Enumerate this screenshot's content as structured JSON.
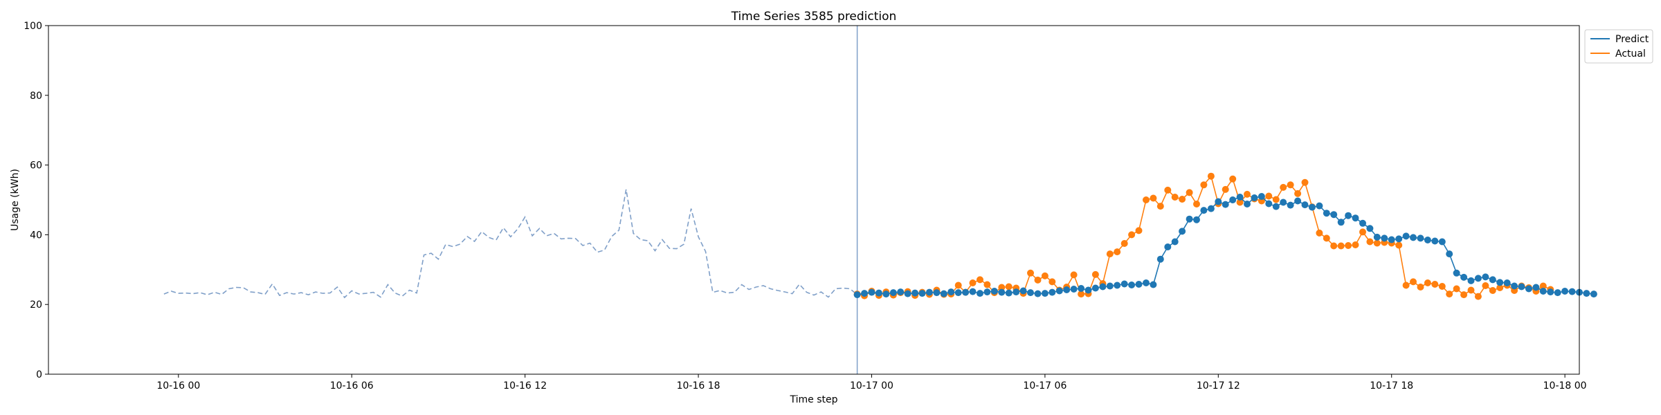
{
  "chart_data": {
    "type": "line",
    "title": "Time Series 3585 prediction",
    "xlabel": "Time step",
    "ylabel": "Usage (kWh)",
    "ylim": [
      0,
      100
    ],
    "xlim_hours": [
      -4.5,
      48.5
    ],
    "yticks": [
      0,
      20,
      40,
      60,
      80,
      100
    ],
    "xticks": [
      {
        "hours": 0,
        "label": "10-16 00"
      },
      {
        "hours": 6,
        "label": "10-16 06"
      },
      {
        "hours": 12,
        "label": "10-16 12"
      },
      {
        "hours": 18,
        "label": "10-16 18"
      },
      {
        "hours": 24,
        "label": "10-17 00"
      },
      {
        "hours": 30,
        "label": "10-17 06"
      },
      {
        "hours": 36,
        "label": "10-17 12"
      },
      {
        "hours": 42,
        "label": "10-17 18"
      },
      {
        "hours": 48,
        "label": "10-18 00"
      }
    ],
    "x_unit": "hours since 10-16 00:00, 15-minute steps",
    "forecast_start_hours": 23.5,
    "legend": {
      "position": "upper-right-outside",
      "entries": [
        "Predict",
        "Actual"
      ]
    },
    "series": [
      {
        "name": "History",
        "style": "dashed",
        "color": "#7f9fc8",
        "x_start": -0.5,
        "step": 0.25,
        "values": [
          23.0,
          23.8,
          23.2,
          23.3,
          23.1,
          23.4,
          22.8,
          23.5,
          22.9,
          24.5,
          24.9,
          24.8,
          23.6,
          23.4,
          22.9,
          25.9,
          22.6,
          23.4,
          23.0,
          23.4,
          22.8,
          23.6,
          23.2,
          23.3,
          25.0,
          22.0,
          23.9,
          23.0,
          23.2,
          23.5,
          22.1,
          25.7,
          23.3,
          22.4,
          24.1,
          23.3,
          34.2,
          34.7,
          33.0,
          37.2,
          36.6,
          37.3,
          39.5,
          38.1,
          40.9,
          39.2,
          38.5,
          42.0,
          39.4,
          41.7,
          45.1,
          39.7,
          41.8,
          39.7,
          40.4,
          38.8,
          39.0,
          38.9,
          36.9,
          37.6,
          35.0,
          35.6,
          39.5,
          41.3,
          53.0,
          40.4,
          38.6,
          38.3,
          35.4,
          38.6,
          36.1,
          36.0,
          37.3,
          47.5,
          39.4,
          35.2,
          23.5,
          24.0,
          23.3,
          23.5,
          25.7,
          24.3,
          25.0,
          25.4,
          24.5,
          24.0,
          23.6,
          23.1,
          25.8,
          23.5,
          22.7,
          23.6,
          22.1,
          24.5,
          24.7,
          24.5,
          22.8,
          23.4
        ]
      },
      {
        "name": "Predict",
        "style": "solid-markers",
        "color": "#1f77b4",
        "x_start": 23.5,
        "step": 0.25,
        "values": [
          22.8,
          23.2,
          23.5,
          23.3,
          23.0,
          23.4,
          23.6,
          23.1,
          23.3,
          23.2,
          23.5,
          23.4,
          23.1,
          23.6,
          23.4,
          23.5,
          23.7,
          23.2,
          23.6,
          23.8,
          23.5,
          23.3,
          23.6,
          23.9,
          23.4,
          23.1,
          23.2,
          23.5,
          23.9,
          24.2,
          24.4,
          24.6,
          24.1,
          24.7,
          25.1,
          25.3,
          25.5,
          25.9,
          25.6,
          25.8,
          26.2,
          25.7,
          33.0,
          36.5,
          38.0,
          41.0,
          44.5,
          44.3,
          47.0,
          47.5,
          49.5,
          48.7,
          50.0,
          50.8,
          48.8,
          50.6,
          51.0,
          48.9,
          48.1,
          49.3,
          48.5,
          49.7,
          48.6,
          47.9,
          48.3,
          46.2,
          45.8,
          43.6,
          45.5,
          44.8,
          43.3,
          41.8,
          39.3,
          39.0,
          38.6,
          38.8,
          39.6,
          39.2,
          39.0,
          38.5,
          38.2,
          38.0,
          34.5,
          29.0,
          27.8,
          26.8,
          27.5,
          27.9,
          27.1,
          26.3,
          26.2,
          25.3,
          25.1,
          24.5,
          24.9,
          23.8,
          23.6,
          23.4,
          23.8,
          23.7,
          23.5,
          23.2,
          23.0
        ]
      },
      {
        "name": "Actual",
        "style": "solid-markers",
        "color": "#ff7f0e",
        "x_start": 23.5,
        "step": 0.25,
        "values": [
          23.0,
          22.5,
          23.8,
          22.6,
          23.6,
          22.7,
          23.4,
          23.7,
          22.6,
          23.5,
          22.9,
          24.1,
          22.9,
          23.0,
          25.5,
          23.5,
          26.2,
          27.1,
          25.7,
          23.4,
          24.9,
          25.1,
          24.7,
          23.2,
          29.0,
          27.0,
          28.2,
          26.5,
          24.1,
          25.0,
          28.5,
          23.0,
          23.1,
          28.6,
          26.0,
          34.5,
          35.1,
          37.5,
          40.0,
          41.2,
          50.0,
          50.5,
          48.2,
          52.8,
          50.8,
          50.2,
          52.1,
          48.8,
          54.3,
          56.8,
          48.9,
          53.0,
          56.0,
          49.3,
          51.6,
          50.3,
          49.7,
          51.1,
          50.1,
          53.6,
          54.3,
          51.8,
          55.0,
          48.0,
          40.5,
          39.0,
          36.8,
          36.8,
          36.9,
          37.1,
          40.8,
          38.0,
          37.6,
          37.8,
          37.6,
          37.0,
          25.5,
          26.5,
          25.0,
          26.2,
          25.8,
          25.2,
          23.0,
          24.5,
          22.8,
          24.1,
          22.3,
          25.4,
          24.0,
          24.8,
          25.5,
          24.0,
          25.3,
          24.8,
          23.8,
          25.3,
          24.3
        ]
      }
    ]
  }
}
